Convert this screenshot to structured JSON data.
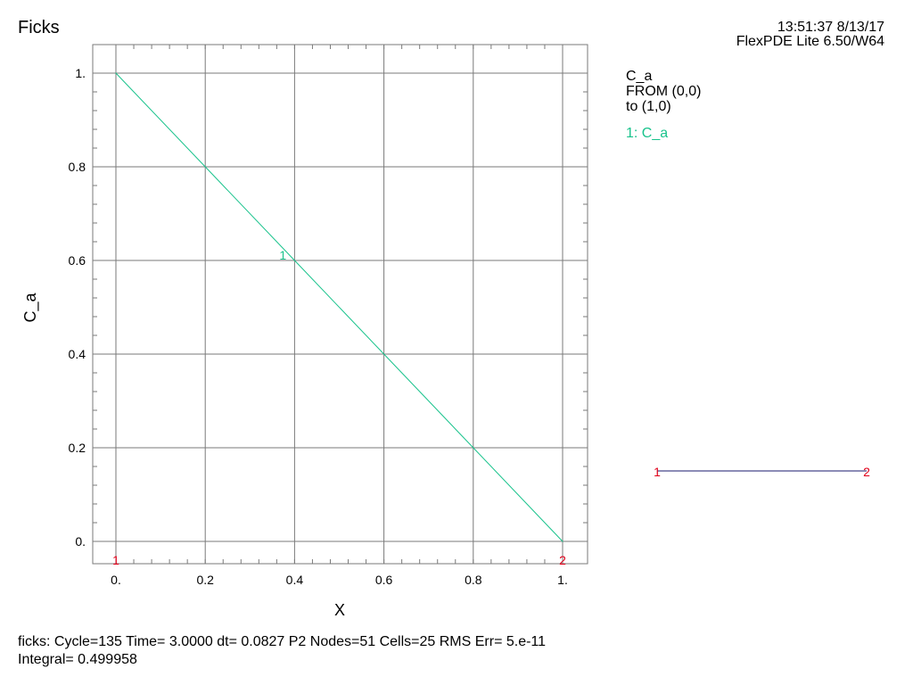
{
  "title": "Ficks",
  "header": {
    "timestamp": "13:51:37 8/13/17",
    "version": "FlexPDE Lite 6.50/W64"
  },
  "legend": {
    "variable": "C_a",
    "from": "FROM (0,0)",
    "to": "to (1,0)",
    "series_label": "1: C_a",
    "path_start": "1",
    "path_end": "2"
  },
  "footer": {
    "line1": "ficks:  Cycle=135  Time= 3.0000  dt= 0.0827  P2  Nodes=51 Cells=25 RMS Err= 5.e-11",
    "line2": "Integral=  0.499958"
  },
  "colors": {
    "series": "#19c38c",
    "markers": "#e0001a",
    "path": "#1a1a6e",
    "grid": "#7a7a7a"
  },
  "chart_data": {
    "type": "line",
    "xlabel": "X",
    "ylabel": "C_a",
    "xlim": [
      0,
      1
    ],
    "ylim": [
      0,
      1
    ],
    "grid": true,
    "x_ticks": [
      {
        "v": 0,
        "label": "0."
      },
      {
        "v": 0.2,
        "label": "0.2"
      },
      {
        "v": 0.4,
        "label": "0.4"
      },
      {
        "v": 0.6,
        "label": "0.6"
      },
      {
        "v": 0.8,
        "label": "0.8"
      },
      {
        "v": 1,
        "label": "1."
      }
    ],
    "y_ticks": [
      {
        "v": 0,
        "label": "0."
      },
      {
        "v": 0.2,
        "label": "0.2"
      },
      {
        "v": 0.4,
        "label": "0.4"
      },
      {
        "v": 0.6,
        "label": "0.6"
      },
      {
        "v": 0.8,
        "label": "0.8"
      },
      {
        "v": 1,
        "label": "1."
      }
    ],
    "series": [
      {
        "name": "C_a",
        "label": "1",
        "label_at": 0.39,
        "x": [
          0,
          0.2,
          0.4,
          0.6,
          0.8,
          1.0
        ],
        "y": [
          1.0,
          0.8,
          0.6,
          0.4,
          0.2,
          0.0
        ]
      }
    ],
    "endpoint_markers": [
      {
        "x": 0,
        "label": "1"
      },
      {
        "x": 1,
        "label": "2"
      }
    ]
  }
}
